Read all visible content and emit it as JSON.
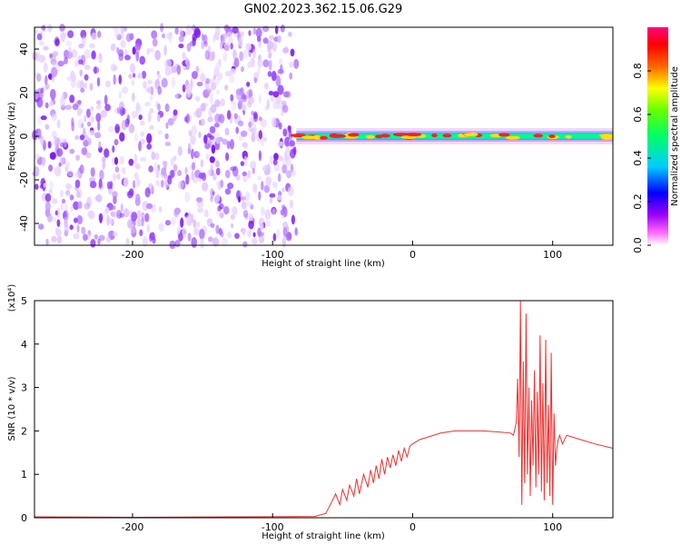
{
  "title": "GN02.2023.362.15.06.G29",
  "chart_data": [
    {
      "type": "heatmap",
      "name": "spectrogram",
      "xlabel": "Height of straight line (km)",
      "ylabel": "Frequency (Hz)",
      "xlim": [
        -270,
        143
      ],
      "ylim": [
        -50,
        50
      ],
      "xticks": [
        -200,
        -100,
        0,
        100
      ],
      "yticks": [
        -40,
        -20,
        0,
        20,
        40
      ],
      "noise_region_x": [
        -270,
        -83
      ],
      "signal_frequency_hz": 0,
      "colorbar": {
        "label": "Normalized spectral amplitude",
        "range": [
          0,
          1
        ],
        "ticks": [
          0.0,
          0.2,
          0.4,
          0.6,
          0.8
        ],
        "colors": [
          "#ffffff",
          "#ff00ff",
          "#0000ff",
          "#00ffff",
          "#00ff00",
          "#ffff00",
          "#ff0000",
          "#ff007f"
        ]
      }
    },
    {
      "type": "line",
      "name": "snr",
      "xlabel": "Height of straight line (km)",
      "ylabel": "SNR (10 * v/v)",
      "scale_label": "(x10⁴)",
      "xlim": [
        -270,
        143
      ],
      "ylim": [
        0,
        5
      ],
      "xticks": [
        -200,
        -100,
        0,
        100
      ],
      "yticks": [
        0,
        1,
        2,
        3,
        4,
        5
      ],
      "color": "#ee3030",
      "series": [
        {
          "x": [
            -270,
            -200,
            -120,
            -70,
            -62,
            -58,
            -55,
            -52,
            -50,
            -47,
            -45,
            -42,
            -40,
            -38,
            -35,
            -32,
            -30,
            -28,
            -26,
            -24,
            -22,
            -20,
            -18,
            -16,
            -14,
            -12,
            -10,
            -8,
            -6,
            -4,
            -2,
            0,
            5,
            10,
            20,
            30,
            40,
            50,
            60,
            70,
            72,
            74,
            75,
            76,
            77,
            78,
            79,
            80,
            81,
            82,
            83,
            84,
            85,
            86,
            87,
            88,
            89,
            90,
            91,
            92,
            93,
            94,
            95,
            96,
            97,
            98,
            99,
            100,
            101,
            102,
            103,
            104,
            105,
            107,
            110,
            115,
            120,
            130,
            143
          ],
          "y": [
            0.02,
            0.01,
            0.02,
            0.03,
            0.1,
            0.35,
            0.55,
            0.3,
            0.65,
            0.4,
            0.75,
            0.5,
            0.9,
            0.55,
            1.0,
            0.7,
            1.1,
            0.8,
            1.2,
            0.9,
            1.35,
            1.0,
            1.4,
            1.15,
            1.45,
            1.2,
            1.55,
            1.3,
            1.6,
            1.4,
            1.65,
            1.7,
            1.8,
            1.85,
            1.95,
            2.0,
            2.0,
            2.0,
            1.98,
            1.95,
            1.9,
            2.2,
            3.2,
            1.4,
            5.0,
            0.3,
            3.6,
            0.8,
            4.7,
            1.0,
            3.0,
            0.5,
            2.7,
            1.2,
            3.4,
            0.7,
            2.9,
            1.0,
            4.2,
            0.6,
            3.1,
            0.4,
            4.1,
            0.8,
            2.6,
            0.5,
            3.8,
            0.3,
            2.4,
            1.2,
            1.6,
            1.8,
            1.9,
            1.7,
            1.9,
            1.85,
            1.8,
            1.7,
            1.6
          ]
        }
      ]
    }
  ]
}
